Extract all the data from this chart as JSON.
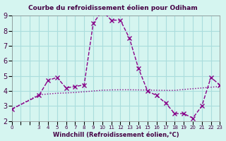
{
  "title": "Courbe du refroidissement éolien pour Odiham",
  "xlabel": "Windchill (Refroidissement éolien,°C)",
  "bg_color": "#d5f5f0",
  "grid_color": "#aadddd",
  "line_color": "#880088",
  "hours": [
    0,
    3,
    4,
    5,
    6,
    7,
    8,
    9,
    10,
    11,
    12,
    13,
    14,
    15,
    16,
    17,
    18,
    19,
    20,
    21,
    22,
    23
  ],
  "temp_curve": [
    2.8,
    3.7,
    4.7,
    4.9,
    4.2,
    4.3,
    4.4,
    8.5,
    9.3,
    8.7,
    8.7,
    7.5,
    5.5,
    4.0,
    3.7,
    3.2,
    2.5,
    2.5,
    2.2,
    3.0,
    4.9,
    4.4
  ],
  "smooth_curve": [
    2.8,
    3.75,
    3.8,
    3.85,
    3.87,
    3.9,
    3.95,
    4.0,
    4.05,
    4.07,
    4.08,
    4.08,
    4.07,
    4.06,
    4.05,
    4.04,
    4.04,
    4.1,
    4.15,
    4.2,
    4.25,
    4.3
  ],
  "ylim": [
    2,
    9
  ],
  "yticks": [
    2,
    3,
    4,
    5,
    6,
    7,
    8,
    9
  ],
  "xlim": [
    0,
    23
  ],
  "tick_color": "#440044"
}
